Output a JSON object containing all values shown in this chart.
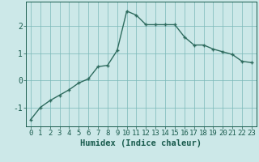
{
  "x": [
    0,
    1,
    2,
    3,
    4,
    5,
    6,
    7,
    8,
    9,
    10,
    11,
    12,
    13,
    14,
    15,
    16,
    17,
    18,
    19,
    20,
    21,
    22,
    23
  ],
  "y": [
    -1.45,
    -1.0,
    -0.75,
    -0.55,
    -0.35,
    -0.1,
    0.05,
    0.5,
    0.55,
    1.1,
    2.55,
    2.4,
    2.05,
    2.05,
    2.05,
    2.05,
    1.6,
    1.3,
    1.3,
    1.15,
    1.05,
    0.95,
    0.7,
    0.65
  ],
  "line_color": "#2e6b5e",
  "marker": "+",
  "bg_color": "#cce8e8",
  "grid_color": "#7ab8b8",
  "xlabel": "Humidex (Indice chaleur)",
  "xlim": [
    -0.5,
    23.5
  ],
  "ylim": [
    -1.7,
    2.9
  ],
  "yticks": [
    -1,
    0,
    1,
    2
  ],
  "xticks": [
    0,
    1,
    2,
    3,
    4,
    5,
    6,
    7,
    8,
    9,
    10,
    11,
    12,
    13,
    14,
    15,
    16,
    17,
    18,
    19,
    20,
    21,
    22,
    23
  ],
  "tick_color": "#1a5c4e",
  "xlabel_fontsize": 7.5,
  "tick_fontsize": 6.5,
  "linewidth": 1.0,
  "markersize": 3.5,
  "markeredgewidth": 1.0
}
